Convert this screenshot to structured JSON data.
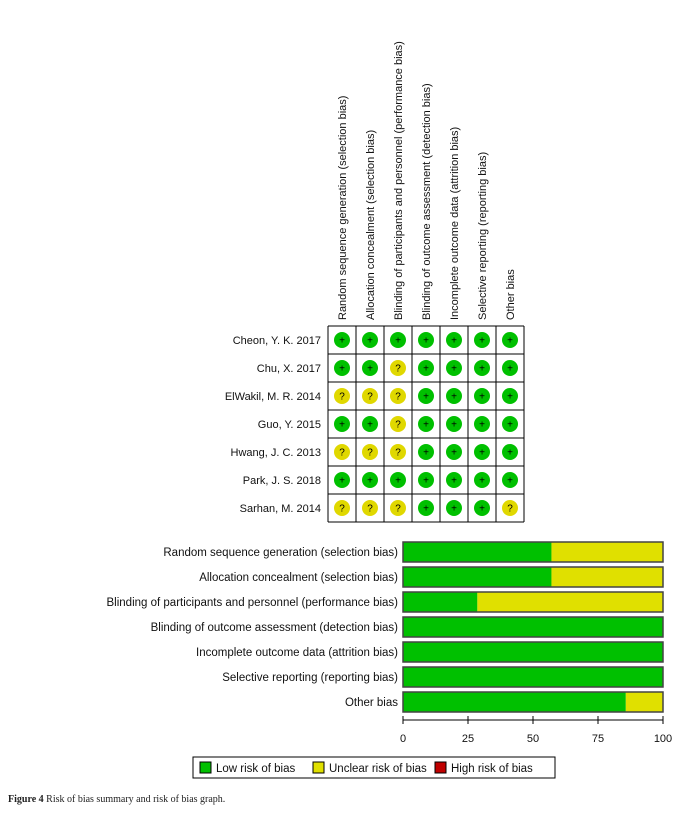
{
  "chart_data": [
    {
      "type": "table",
      "title": "",
      "columns": [
        "Random sequence generation (selection bias)",
        "Allocation concealment (selection bias)",
        "Blinding of participants and personnel (performance bias)",
        "Blinding of outcome assessment (detection bias)",
        "Incomplete outcome data (attrition bias)",
        "Selective reporting (reporting bias)",
        "Other bias"
      ],
      "rows": [
        "Cheon, Y.  K. 2017",
        "Chu, X. 2017",
        "ElWakil, M. R. 2014",
        "Guo, Y. 2015",
        "Hwang, J. C. 2013",
        "Park, J. S. 2018",
        "Sarhan, M. 2014"
      ],
      "values": [
        [
          "+",
          "+",
          "+",
          "+",
          "+",
          "+",
          "+"
        ],
        [
          "+",
          "+",
          "?",
          "+",
          "+",
          "+",
          "+"
        ],
        [
          "?",
          "?",
          "?",
          "+",
          "+",
          "+",
          "+"
        ],
        [
          "+",
          "+",
          "?",
          "+",
          "+",
          "+",
          "+"
        ],
        [
          "?",
          "?",
          "?",
          "+",
          "+",
          "+",
          "+"
        ],
        [
          "+",
          "+",
          "+",
          "+",
          "+",
          "+",
          "+"
        ],
        [
          "?",
          "?",
          "?",
          "+",
          "+",
          "+",
          "?"
        ]
      ]
    },
    {
      "type": "bar",
      "stacked": true,
      "orientation": "horizontal",
      "categories": [
        "Random sequence generation (selection bias)",
        "Allocation concealment (selection bias)",
        "Blinding of participants and personnel (performance bias)",
        "Blinding of outcome assessment (detection bias)",
        "Incomplete outcome data (attrition bias)",
        "Selective reporting (reporting bias)",
        "Other bias"
      ],
      "series": [
        {
          "name": "Low risk of bias",
          "color": "#00c000",
          "values": [
            57.1,
            57.1,
            28.6,
            100,
            100,
            100,
            85.7
          ]
        },
        {
          "name": "Unclear risk of bias",
          "color": "#e0e000",
          "values": [
            42.9,
            42.9,
            71.4,
            0,
            0,
            0,
            14.3
          ]
        },
        {
          "name": "High risk of bias",
          "color": "#c00000",
          "values": [
            0,
            0,
            0,
            0,
            0,
            0,
            0
          ]
        }
      ],
      "xlim": [
        0,
        100
      ],
      "xticks": [
        "0",
        "25",
        "50",
        "75",
        "100"
      ],
      "legend": "bottom"
    }
  ],
  "caption": {
    "label": "Figure 4",
    "text": " Risk of bias summary and risk of bias graph."
  }
}
